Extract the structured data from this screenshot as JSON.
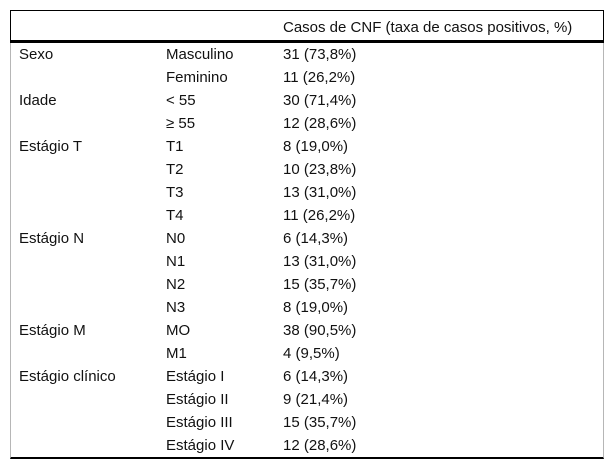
{
  "table": {
    "header": {
      "category_label": "",
      "subcategory_label": "",
      "value_label": "Casos de CNF (taxa de casos positivos, %)"
    },
    "rows": [
      {
        "category": "Sexo",
        "sub": "Masculino",
        "value": "31 (73,8%)"
      },
      {
        "category": "",
        "sub": "Feminino",
        "value": "11 (26,2%)"
      },
      {
        "category": "Idade",
        "sub": "< 55",
        "value": "30 (71,4%)"
      },
      {
        "category": "",
        "sub": "≥ 55",
        "value": "12 (28,6%)"
      },
      {
        "category": "Estágio T",
        "sub": "T1",
        "value": "8 (19,0%)"
      },
      {
        "category": "",
        "sub": "T2",
        "value": "10 (23,8%)"
      },
      {
        "category": "",
        "sub": "T3",
        "value": "13 (31,0%)"
      },
      {
        "category": "",
        "sub": "T4",
        "value": "11 (26,2%)"
      },
      {
        "category": "Estágio N",
        "sub": "N0",
        "value": "6 (14,3%)"
      },
      {
        "category": "",
        "sub": "N1",
        "value": "13 (31,0%)"
      },
      {
        "category": "",
        "sub": "N2",
        "value": "15 (35,7%)"
      },
      {
        "category": "",
        "sub": "N3",
        "value": "8 (19,0%)"
      },
      {
        "category": "Estágio M",
        "sub": "MO",
        "value": "38 (90,5%)"
      },
      {
        "category": "",
        "sub": "M1",
        "value": "4 (9,5%)"
      },
      {
        "category": "Estágio clínico",
        "sub": "Estágio I",
        "value": "6 (14,3%)"
      },
      {
        "category": "",
        "sub": "Estágio II",
        "value": "9 (21,4%)"
      },
      {
        "category": "",
        "sub": "Estágio III",
        "value": "15 (35,7%)"
      },
      {
        "category": "",
        "sub": "Estágio IV",
        "value": "12 (28,6%)"
      }
    ]
  }
}
